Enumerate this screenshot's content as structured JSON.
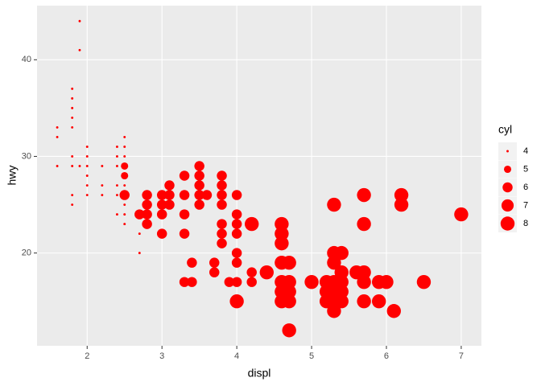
{
  "chart_data": {
    "type": "scatter",
    "x_label": "displ",
    "y_label": "hwy",
    "color": "#ff0000",
    "grid": true,
    "size_title": "cyl",
    "size_legend": [
      4,
      5,
      6,
      7,
      8
    ],
    "xlim": [
      1.33,
      7.27
    ],
    "ylim": [
      10.4,
      45.6
    ],
    "xticks": [
      2,
      3,
      4,
      5,
      6,
      7
    ],
    "yticks": [
      20,
      30,
      40
    ],
    "x": [
      1.6,
      1.6,
      1.6,
      1.8,
      1.8,
      1.8,
      1.8,
      1.8,
      1.8,
      1.8,
      1.8,
      1.8,
      1.9,
      1.9,
      1.9,
      2.0,
      2.0,
      2.0,
      2.0,
      2.0,
      2.0,
      2.2,
      2.2,
      2.2,
      2.4,
      2.4,
      2.4,
      2.4,
      2.4,
      2.4,
      2.5,
      2.5,
      2.5,
      2.5,
      2.5,
      2.5,
      2.5,
      2.5,
      2.7,
      2.7,
      2.5,
      2.5,
      2.5,
      2.7,
      2.8,
      2.8,
      2.8,
      2.8,
      3.0,
      3.0,
      3.0,
      3.0,
      3.1,
      3.1,
      3.1,
      3.3,
      3.3,
      3.3,
      3.3,
      3.3,
      3.4,
      3.4,
      3.5,
      3.5,
      3.5,
      3.5,
      3.5,
      3.6,
      3.7,
      3.7,
      3.8,
      3.8,
      3.8,
      3.8,
      3.8,
      3.8,
      3.8,
      3.9,
      4.0,
      4.0,
      4.0,
      4.0,
      4.0,
      4.0,
      4.0,
      4.2,
      4.2,
      4.0,
      4.2,
      4.4,
      4.6,
      4.6,
      4.6,
      4.6,
      4.6,
      4.6,
      4.6,
      4.7,
      4.7,
      4.7,
      4.7,
      4.7,
      5.0,
      5.2,
      5.2,
      5.2,
      5.3,
      5.3,
      5.3,
      5.3,
      5.3,
      5.3,
      5.3,
      5.4,
      5.4,
      5.4,
      5.4,
      5.4,
      5.6,
      5.7,
      5.7,
      5.7,
      5.7,
      5.7,
      5.9,
      5.9,
      6.0,
      6.1,
      6.2,
      6.2,
      6.5,
      7.0
    ],
    "values": [
      33,
      32,
      29,
      37,
      36,
      35,
      34,
      33,
      30,
      29,
      26,
      25,
      44,
      41,
      29,
      31,
      30,
      29,
      28,
      27,
      26,
      29,
      27,
      26,
      31,
      30,
      29,
      27,
      26,
      24,
      32,
      31,
      30,
      27,
      26,
      25,
      24,
      23,
      22,
      20,
      29,
      28,
      26,
      24,
      26,
      25,
      24,
      23,
      26,
      25,
      24,
      22,
      27,
      26,
      25,
      28,
      26,
      24,
      22,
      17,
      19,
      17,
      29,
      28,
      27,
      26,
      25,
      26,
      19,
      18,
      28,
      27,
      26,
      25,
      23,
      22,
      21,
      17,
      26,
      24,
      23,
      22,
      20,
      19,
      17,
      18,
      17,
      15,
      23,
      18,
      23,
      22,
      21,
      19,
      17,
      16,
      15,
      19,
      17,
      16,
      15,
      12,
      17,
      17,
      16,
      15,
      25,
      20,
      19,
      17,
      16,
      15,
      14,
      20,
      18,
      17,
      16,
      15,
      18,
      26,
      23,
      18,
      17,
      15,
      17,
      15,
      17,
      14,
      26,
      25,
      17,
      24
    ],
    "sizes": [
      4,
      4,
      4,
      4,
      4,
      4,
      4,
      4,
      4,
      4,
      4,
      4,
      4,
      4,
      4,
      4,
      4,
      4,
      4,
      4,
      4,
      4,
      4,
      4,
      4,
      4,
      4,
      4,
      4,
      4,
      4,
      4,
      4,
      4,
      4,
      4,
      4,
      4,
      4,
      4,
      5,
      5,
      6,
      6,
      6,
      6,
      6,
      6,
      6,
      6,
      6,
      6,
      6,
      6,
      6,
      6,
      6,
      6,
      6,
      6,
      6,
      6,
      6,
      6,
      6,
      6,
      6,
      6,
      6,
      6,
      6,
      6,
      6,
      6,
      6,
      6,
      6,
      6,
      6,
      6,
      6,
      6,
      6,
      6,
      6,
      6,
      6,
      8,
      8,
      8,
      8,
      8,
      8,
      8,
      8,
      8,
      8,
      8,
      8,
      8,
      8,
      8,
      8,
      8,
      8,
      8,
      8,
      8,
      8,
      8,
      8,
      8,
      8,
      8,
      8,
      8,
      8,
      8,
      8,
      8,
      8,
      8,
      8,
      8,
      8,
      8,
      8,
      8,
      8,
      8,
      8,
      8
    ]
  }
}
